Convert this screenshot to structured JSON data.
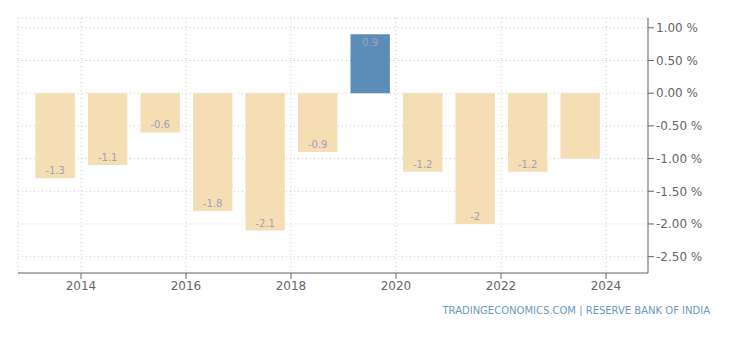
{
  "chart_data": {
    "type": "bar",
    "x": [
      2013.5,
      2014.5,
      2015.5,
      2016.5,
      2017.5,
      2018.5,
      2019.5,
      2020.5,
      2021.5,
      2022.5,
      2023.5
    ],
    "values": [
      -1.3,
      -1.1,
      -0.6,
      -1.8,
      -2.1,
      -0.9,
      0.9,
      -1.2,
      -2.0,
      -1.2,
      -1.0
    ],
    "colors": [
      "#f5deb3",
      "#f5deb3",
      "#f5deb3",
      "#f5deb3",
      "#f5deb3",
      "#f5deb3",
      "#5b8db8",
      "#f5deb3",
      "#f5deb3",
      "#f5deb3",
      "#f5deb3"
    ],
    "data_labels": true,
    "value_labels": [
      "-1.3",
      "-1.1",
      "-0.6",
      "-1.8",
      "-2.1",
      "-0.9",
      "0.9",
      "-1.2",
      "-2",
      "-1.2",
      null
    ],
    "xlim": [
      2012.8,
      2024.8
    ],
    "xticks": [
      2014,
      2016,
      2018,
      2020,
      2022,
      2024
    ],
    "ylim": [
      -2.75,
      1.15
    ],
    "yticks": [
      {
        "value": 1.0,
        "label": "1.00 %"
      },
      {
        "value": 0.5,
        "label": "0.50 %"
      },
      {
        "value": 0.0,
        "label": "0.00 %"
      },
      {
        "value": -0.5,
        "label": "-0.50 %"
      },
      {
        "value": -1.0,
        "label": "-1.00 %"
      },
      {
        "value": -1.5,
        "label": "-1.50 %"
      },
      {
        "value": -2.0,
        "label": "-2.00 %"
      },
      {
        "value": -2.5,
        "label": "-2.50 %"
      }
    ],
    "grid": true,
    "annotations": [
      "TRADINGECONOMICS.COM  |  RESERVE BANK OF INDIA"
    ]
  }
}
